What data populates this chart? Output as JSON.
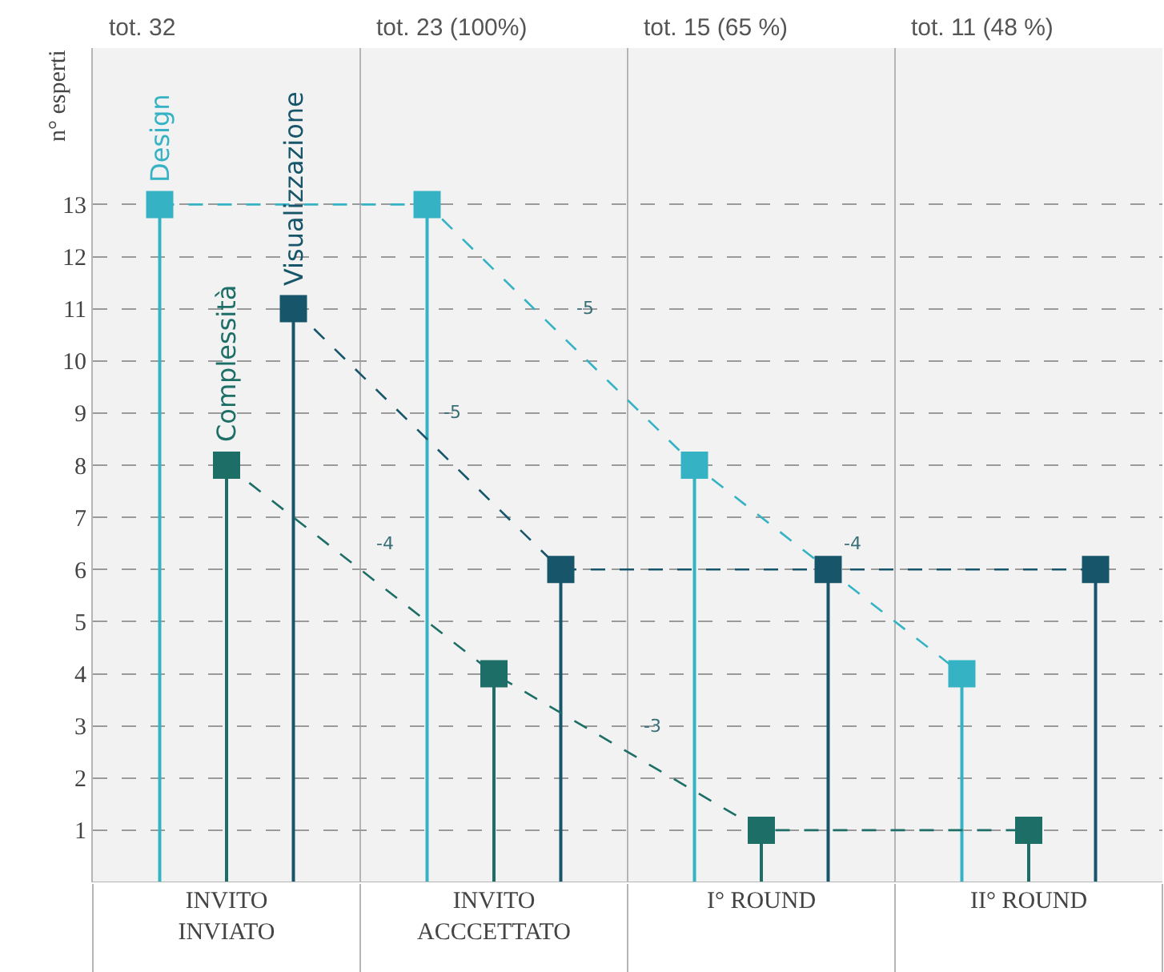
{
  "chart_data": {
    "type": "lollipop",
    "ylabel": "n° esperti",
    "categories": [
      "INVITO\nINVIATO",
      "INVITO\nACCCETTATO",
      "I° ROUND",
      "II° ROUND"
    ],
    "series": [
      {
        "name": "Design",
        "color": "#35b3c4",
        "values": [
          13,
          13,
          8,
          4
        ]
      },
      {
        "name": "Complessità",
        "color": "#1d6e66",
        "values": [
          8,
          4,
          1,
          1
        ]
      },
      {
        "name": "Visualizzazione",
        "color": "#17566a",
        "values": [
          11,
          6,
          6,
          6
        ]
      }
    ],
    "totals": [
      "tot. 32",
      "tot. 23 (100%)",
      "tot. 15 (65 %)",
      "tot. 11 (48 %)"
    ],
    "annotations": [
      "-5",
      "-4",
      "-4",
      "-3",
      "-5"
    ],
    "ylim": [
      0,
      16
    ],
    "yticks": [
      1,
      2,
      3,
      4,
      5,
      6,
      7,
      8,
      9,
      10,
      11,
      12,
      13
    ],
    "grid": true,
    "legend": false,
    "marker": "square",
    "line_style": "dashed"
  }
}
